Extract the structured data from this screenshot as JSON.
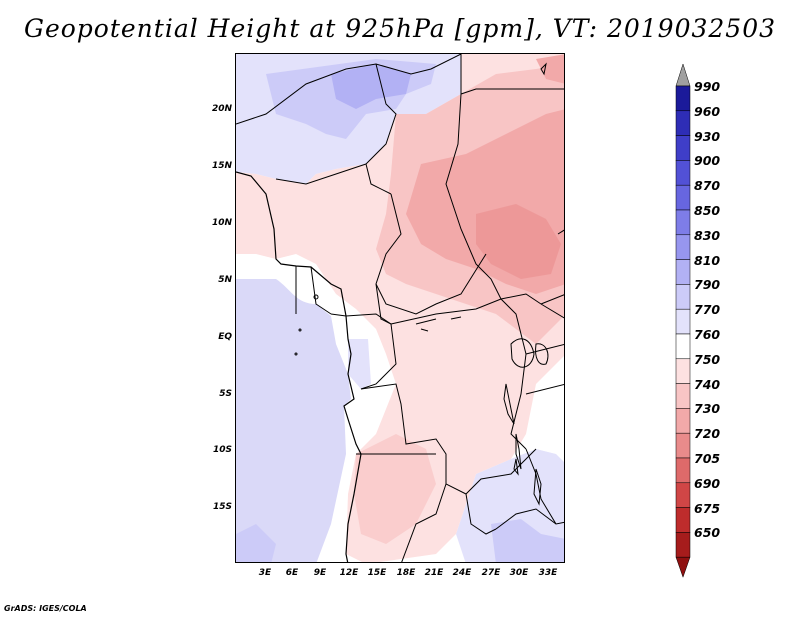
{
  "title": "Geopotential Height at 925hPa [gpm], VT: 2019032503",
  "credit": "GrADS: IGES/COLA",
  "map": {
    "y_ticks": [
      "20N",
      "15N",
      "10N",
      "5N",
      "EQ",
      "5S",
      "10S",
      "15S"
    ],
    "x_ticks": [
      "3E",
      "6E",
      "9E",
      "12E",
      "15E",
      "18E",
      "21E",
      "24E",
      "27E",
      "30E",
      "33E"
    ],
    "ocean_color": "#dad9f8"
  },
  "colorbar": {
    "labels": [
      "990",
      "960",
      "930",
      "900",
      "870",
      "850",
      "830",
      "810",
      "790",
      "770",
      "760",
      "750",
      "740",
      "730",
      "720",
      "705",
      "690",
      "675",
      "650"
    ],
    "colors": [
      "#1b1a9a",
      "#2e2db6",
      "#3f3ec8",
      "#5251d6",
      "#6766e0",
      "#7e7de8",
      "#9796ef",
      "#b2b1f4",
      "#cccbf8",
      "#e3e2fb",
      "#ffffff",
      "#fde1e1",
      "#f8c5c5",
      "#f2a9a9",
      "#e98b8b",
      "#de6a6a",
      "#d04646",
      "#be2c2c",
      "#a61c1c"
    ]
  }
}
